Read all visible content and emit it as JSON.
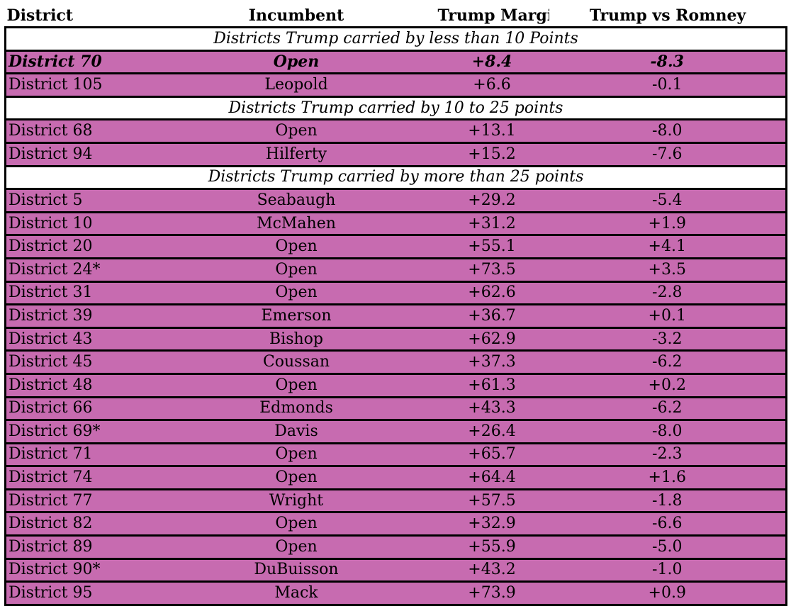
{
  "headers": {
    "district": "District",
    "incumbent": "Incumbent",
    "trump_margin": "Trump Margin",
    "trump_vs_romney": "Trump vs Romney"
  },
  "colors": {
    "row_fill": "#c76bb0",
    "section_fill": "#ffffff",
    "border": "#000000"
  },
  "groups": [
    {
      "label": "Districts Trump carried by less than 10 Points",
      "rows": [
        {
          "district": "District 70",
          "incumbent": "Open",
          "margin": "+8.4",
          "vs_romney": "-8.3",
          "highlight": true
        },
        {
          "district": "District 105",
          "incumbent": "Leopold",
          "margin": "+6.6",
          "vs_romney": "-0.1"
        }
      ]
    },
    {
      "label": "Districts Trump carried by 10 to 25 points",
      "rows": [
        {
          "district": "District 68",
          "incumbent": "Open",
          "margin": "+13.1",
          "vs_romney": "-8.0"
        },
        {
          "district": "District 94",
          "incumbent": "Hilferty",
          "margin": "+15.2",
          "vs_romney": "-7.6"
        }
      ]
    },
    {
      "label": "Districts Trump carried by more than 25 points",
      "rows": [
        {
          "district": "District 5",
          "incumbent": "Seabaugh",
          "margin": "+29.2",
          "vs_romney": "-5.4"
        },
        {
          "district": "District 10",
          "incumbent": "McMahen",
          "margin": "+31.2",
          "vs_romney": "+1.9"
        },
        {
          "district": "District 20",
          "incumbent": "Open",
          "margin": "+55.1",
          "vs_romney": "+4.1"
        },
        {
          "district": "District 24*",
          "incumbent": "Open",
          "margin": "+73.5",
          "vs_romney": "+3.5"
        },
        {
          "district": "District 31",
          "incumbent": "Open",
          "margin": "+62.6",
          "vs_romney": "-2.8"
        },
        {
          "district": "District 39",
          "incumbent": "Emerson",
          "margin": "+36.7",
          "vs_romney": "+0.1"
        },
        {
          "district": "District 43",
          "incumbent": "Bishop",
          "margin": "+62.9",
          "vs_romney": "-3.2"
        },
        {
          "district": "District 45",
          "incumbent": "Coussan",
          "margin": "+37.3",
          "vs_romney": "-6.2"
        },
        {
          "district": "District 48",
          "incumbent": "Open",
          "margin": "+61.3",
          "vs_romney": "+0.2"
        },
        {
          "district": "District 66",
          "incumbent": "Edmonds",
          "margin": "+43.3",
          "vs_romney": "-6.2"
        },
        {
          "district": "District 69*",
          "incumbent": "Davis",
          "margin": "+26.4",
          "vs_romney": "-8.0"
        },
        {
          "district": "District 71",
          "incumbent": "Open",
          "margin": "+65.7",
          "vs_romney": "-2.3"
        },
        {
          "district": "District 74",
          "incumbent": "Open",
          "margin": "+64.4",
          "vs_romney": "+1.6"
        },
        {
          "district": "District 77",
          "incumbent": "Wright",
          "margin": "+57.5",
          "vs_romney": "-1.8"
        },
        {
          "district": "District 82",
          "incumbent": "Open",
          "margin": "+32.9",
          "vs_romney": "-6.6"
        },
        {
          "district": "District 89",
          "incumbent": "Open",
          "margin": "+55.9",
          "vs_romney": "-5.0"
        },
        {
          "district": "District 90*",
          "incumbent": "DuBuisson",
          "margin": "+43.2",
          "vs_romney": "-1.0"
        },
        {
          "district": "District 95",
          "incumbent": "Mack",
          "margin": "+73.9",
          "vs_romney": "+0.9"
        }
      ]
    }
  ]
}
